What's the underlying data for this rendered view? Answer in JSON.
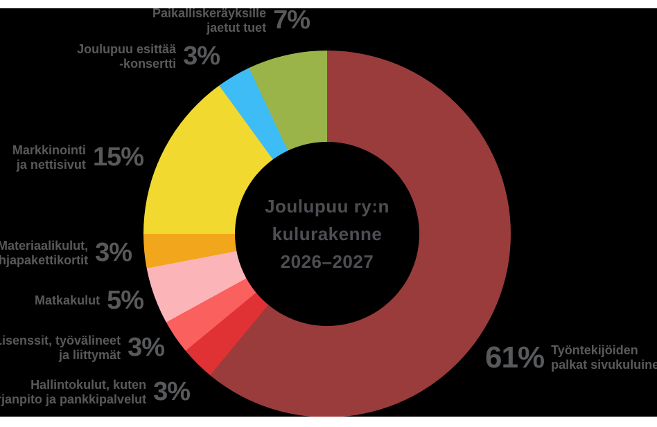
{
  "center": {
    "line1": "Joulupuu ry:n",
    "line2": "kulurakenne",
    "line3": "2026–2027"
  },
  "callouts": {
    "paikallis": {
      "line1": "Paikalliskeräyksille",
      "line2": "jaetut tuet",
      "pct": "7%"
    },
    "konsertti": {
      "line1": "Joulupuu esittää",
      "line2": "-konsertti",
      "pct": "3%"
    },
    "markkinointi": {
      "line1": "Markkinointi",
      "line2": "ja nettisivut",
      "pct": "15%"
    },
    "materiaali": {
      "line1": "Materiaalikulut,",
      "line2": "lahjapakettikortit",
      "pct": "3%"
    },
    "matka": {
      "line1": "Matkakulut",
      "pct": "5%"
    },
    "lisenssit": {
      "line1": "Lisenssit, työvälineet",
      "line2": "ja liittymät",
      "pct": "3%"
    },
    "hallinto": {
      "line1": "Hallintokulut, kuten",
      "line2": "kirjanpito ja pankkipalvelut",
      "pct": "3%"
    },
    "palkat": {
      "line1": "Työntekijöiden",
      "line2": "palkat sivukuluineen",
      "pct": "61%"
    }
  },
  "chart_data": {
    "type": "pie",
    "donut": true,
    "title": "Joulupuu ry:n kulurakenne 2026–2027",
    "start_angle_deg": 0,
    "direction": "clockwise",
    "inner_radius_ratio": 0.5,
    "background_color": "#000000",
    "label_text_color": "#58595b",
    "center_text_color": "#4d4e52",
    "segments": [
      {
        "label": "Työntekijöiden palkat sivukuluineen",
        "value": 61,
        "color": "#9a3c3c"
      },
      {
        "label": "Hallintokulut, kuten kirjanpito ja pankkipalvelut",
        "value": 3,
        "color": "#e03134"
      },
      {
        "label": "Lisenssit, työvälineet ja liittymät",
        "value": 3,
        "color": "#fa605e"
      },
      {
        "label": "Matkakulut",
        "value": 5,
        "color": "#fbb5b9"
      },
      {
        "label": "Materiaalikulut, lahjapakettikortit",
        "value": 3,
        "color": "#f2a61b"
      },
      {
        "label": "Markkinointi ja nettisivut",
        "value": 15,
        "color": "#f1d930"
      },
      {
        "label": "Joulupuu esittää -konsertti",
        "value": 3,
        "color": "#3dbcf5"
      },
      {
        "label": "Paikalliskeräyksille jaetut tuet",
        "value": 7,
        "color": "#9ab44a"
      }
    ]
  }
}
